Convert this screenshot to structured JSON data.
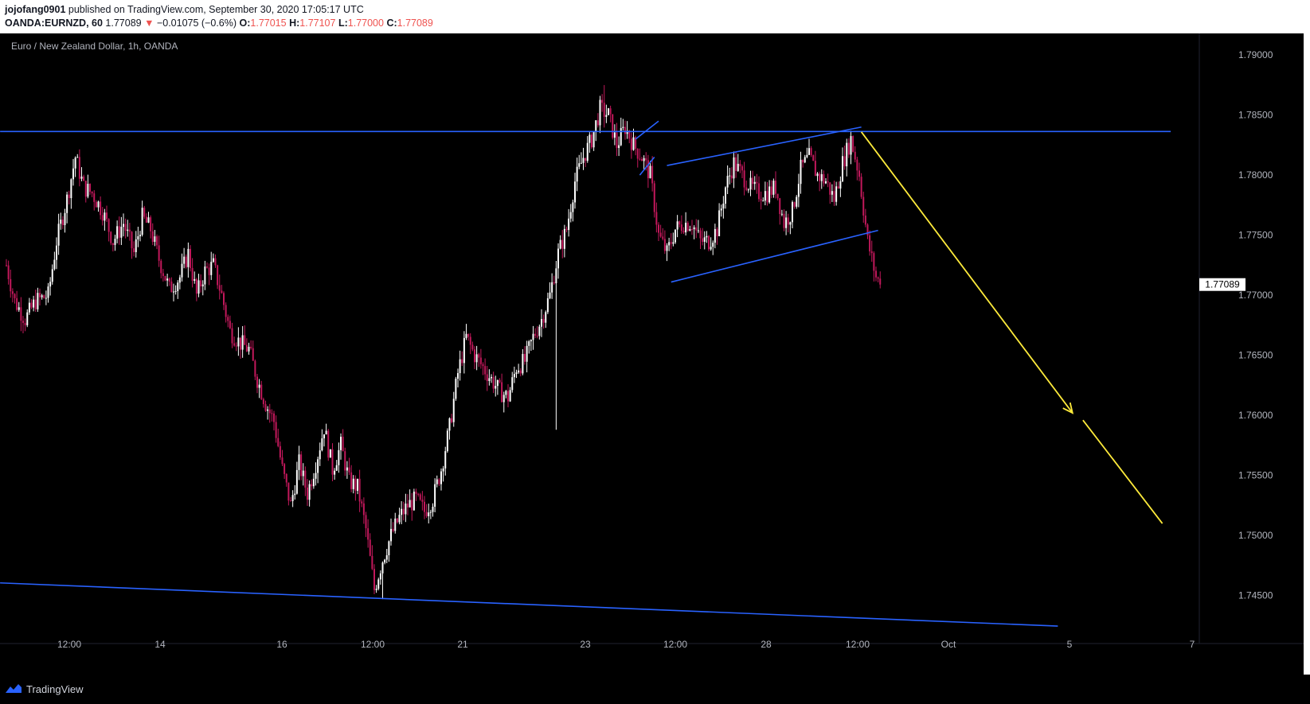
{
  "header": {
    "author": "jojofang0901",
    "published_text": "published on TradingView.com, September 30, 2020 17:05:17 UTC",
    "symbol": "OANDA:EURNZD, 60",
    "price": "1.77089",
    "change_arrow": "▼",
    "change": "−0.01075 (−0.6%)",
    "o_label": "O:",
    "o_value": "1.77015",
    "h_label": "H:",
    "h_value": "1.77107",
    "l_label": "L:",
    "l_value": "1.77000",
    "c_label": "C:",
    "c_value": "1.77089"
  },
  "pane_title": "Euro / New Zealand Dollar, 1h, OANDA",
  "footer": {
    "brand": "TradingView",
    "logo_icon": "tradingview-logo-icon"
  },
  "colors": {
    "background": "#000000",
    "candle_up": "#ffffff",
    "candle_down": "#c2185b",
    "trendline": "#2962ff",
    "arrow": "#ffeb3b",
    "red_text": "#ef5350"
  },
  "chart_data": {
    "type": "candlestick",
    "ylim": [
      1.741,
      1.7918
    ],
    "y_ticks": [
      "1.79000",
      "1.78500",
      "1.78000",
      "1.77500",
      "1.77000",
      "1.76500",
      "1.76000",
      "1.75500",
      "1.75000",
      "1.74500"
    ],
    "x_ticks": [
      "12:00",
      "14",
      "16",
      "12:00",
      "21",
      "23",
      "12:00",
      "28",
      "12:00",
      "Oct",
      "5",
      "7"
    ],
    "last_price_label": "1.77089",
    "close_path": [
      [
        0,
        1.7725
      ],
      [
        4,
        1.7695
      ],
      [
        9,
        1.768
      ],
      [
        14,
        1.7695
      ],
      [
        20,
        1.77
      ],
      [
        24,
        1.7745
      ],
      [
        29,
        1.778
      ],
      [
        33,
        1.7815
      ],
      [
        37,
        1.779
      ],
      [
        41,
        1.7785
      ],
      [
        46,
        1.777
      ],
      [
        51,
        1.7745
      ],
      [
        56,
        1.776
      ],
      [
        61,
        1.7735
      ],
      [
        65,
        1.7765
      ],
      [
        69,
        1.7755
      ],
      [
        73,
        1.773
      ],
      [
        78,
        1.7705
      ],
      [
        83,
        1.7715
      ],
      [
        87,
        1.7735
      ],
      [
        91,
        1.77
      ],
      [
        95,
        1.772
      ],
      [
        99,
        1.7725
      ],
      [
        103,
        1.77
      ],
      [
        107,
        1.767
      ],
      [
        112,
        1.766
      ],
      [
        116,
        1.7655
      ],
      [
        120,
        1.763
      ],
      [
        124,
        1.761
      ],
      [
        128,
        1.7595
      ],
      [
        132,
        1.7555
      ],
      [
        136,
        1.7525
      ],
      [
        140,
        1.756
      ],
      [
        144,
        1.7535
      ],
      [
        148,
        1.756
      ],
      [
        152,
        1.759
      ],
      [
        156,
        1.7555
      ],
      [
        160,
        1.7575
      ],
      [
        164,
        1.7545
      ],
      [
        168,
        1.754
      ],
      [
        172,
        1.7505
      ],
      [
        176,
        1.7455
      ],
      [
        180,
        1.748
      ],
      [
        184,
        1.75
      ],
      [
        188,
        1.7515
      ],
      [
        192,
        1.7525
      ],
      [
        196,
        1.753
      ],
      [
        200,
        1.752
      ],
      [
        204,
        1.753
      ],
      [
        208,
        1.7555
      ],
      [
        212,
        1.759
      ],
      [
        216,
        1.7635
      ],
      [
        220,
        1.7665
      ],
      [
        224,
        1.765
      ],
      [
        228,
        1.764
      ],
      [
        232,
        1.763
      ],
      [
        236,
        1.762
      ],
      [
        240,
        1.7615
      ],
      [
        244,
        1.764
      ],
      [
        248,
        1.7645
      ],
      [
        252,
        1.7665
      ],
      [
        256,
        1.768
      ],
      [
        260,
        1.77
      ],
      [
        264,
        1.7735
      ],
      [
        268,
        1.7755
      ],
      [
        272,
        1.7795
      ],
      [
        276,
        1.7815
      ],
      [
        280,
        1.783
      ],
      [
        284,
        1.7855
      ],
      [
        288,
        1.785
      ],
      [
        292,
        1.7825
      ],
      [
        296,
        1.784
      ],
      [
        300,
        1.7825
      ],
      [
        304,
        1.7815
      ],
      [
        308,
        1.78
      ],
      [
        312,
        1.775
      ],
      [
        316,
        1.7735
      ],
      [
        320,
        1.7755
      ],
      [
        324,
        1.776
      ],
      [
        328,
        1.776
      ],
      [
        332,
        1.7745
      ],
      [
        336,
        1.7745
      ],
      [
        340,
        1.7755
      ],
      [
        344,
        1.779
      ],
      [
        348,
        1.781
      ],
      [
        352,
        1.78
      ],
      [
        356,
        1.779
      ],
      [
        360,
        1.7785
      ],
      [
        364,
        1.7785
      ],
      [
        368,
        1.779
      ],
      [
        372,
        1.776
      ],
      [
        376,
        1.777
      ],
      [
        380,
        1.7805
      ],
      [
        384,
        1.7815
      ],
      [
        388,
        1.78
      ],
      [
        392,
        1.7795
      ],
      [
        396,
        1.778
      ],
      [
        400,
        1.781
      ],
      [
        404,
        1.783
      ],
      [
        408,
        1.78
      ],
      [
        412,
        1.7745
      ],
      [
        416,
        1.7715
      ],
      [
        418,
        1.7709
      ]
    ],
    "extremes": {
      "high": {
        "index": 286,
        "value": 1.7875
      },
      "low": {
        "index": 180,
        "value": 1.7447
      },
      "wick_low": {
        "index": 263,
        "value": 1.7588
      }
    },
    "annotations": {
      "resistance_line": {
        "color": "#2962ff",
        "from": [
          -3,
          1.78363
        ],
        "to": [
          557,
          1.78363
        ]
      },
      "support_line": {
        "color": "#2962ff",
        "from": [
          -3,
          1.74605
        ],
        "to": [
          503,
          1.74245
        ]
      },
      "small_channel_line": {
        "color": "#2962ff",
        "from": [
          303,
          1.78
        ],
        "to": [
          310,
          1.7815
        ]
      },
      "small_flag_top": {
        "color": "#2962ff",
        "from": [
          301,
          1.783
        ],
        "to": [
          312,
          1.7845
        ]
      },
      "channel_upper": {
        "color": "#2962ff",
        "from": [
          316,
          1.7808
        ],
        "to": [
          409,
          1.784
        ]
      },
      "channel_lower": {
        "color": "#2962ff",
        "from": [
          318,
          1.7711
        ],
        "to": [
          417,
          1.7754
        ]
      },
      "arrow_color": "#ffeb3b",
      "arrow_segment_1": {
        "from": [
          409,
          1.7836
        ],
        "to": [
          510,
          1.7602
        ]
      },
      "arrow_segment_2": {
        "from": [
          515,
          1.7596
        ],
        "to": [
          553,
          1.751
        ]
      }
    }
  }
}
